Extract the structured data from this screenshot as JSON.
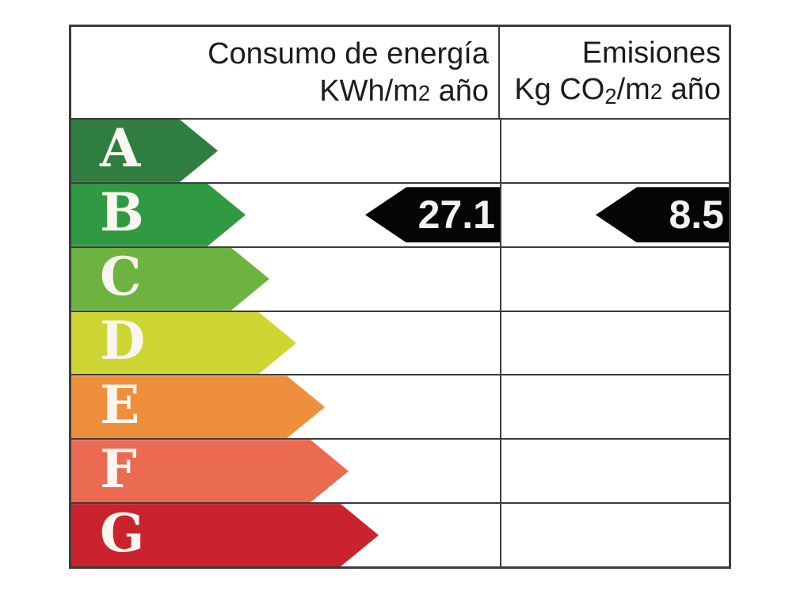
{
  "header": {
    "consumption": {
      "title": "Consumo de energía",
      "unit_prefix": "KWh/m",
      "unit_exponent": "2",
      "unit_suffix": " año"
    },
    "emissions": {
      "title": "Emisiones",
      "unit_prefix": "Kg CO",
      "unit_subscript": "2",
      "unit_mid": "/m",
      "unit_exponent": "2",
      "unit_suffix": " año"
    }
  },
  "scale": [
    {
      "label": "A",
      "color": "#2f7d3f",
      "arrow_width": 185
    },
    {
      "label": "B",
      "color": "#309a42",
      "arrow_width": 220
    },
    {
      "label": "C",
      "color": "#6db33f",
      "arrow_width": 250
    },
    {
      "label": "D",
      "color": "#cdd632",
      "arrow_width": 284
    },
    {
      "label": "E",
      "color": "#ef8f3c",
      "arrow_width": 320
    },
    {
      "label": "F",
      "color": "#eb6a52",
      "arrow_width": 350
    },
    {
      "label": "G",
      "color": "#ca232e",
      "arrow_width": 388
    }
  ],
  "result": {
    "rating": "B",
    "consumption_value": "27.1",
    "emissions_value": "8.5",
    "marker_color": "#050505",
    "consumption_marker_width": 170,
    "emissions_marker_width": 168
  },
  "border_color": "#3c3c3c",
  "chart_data": {
    "type": "table",
    "columns": [
      "Consumo de energía KWh/m2 año",
      "Emisiones Kg CO2/m2 año"
    ],
    "categories": [
      "A",
      "B",
      "C",
      "D",
      "E",
      "F",
      "G"
    ],
    "rating": "B",
    "series": [
      {
        "name": "Consumo de energía KWh/m2 año",
        "rating": "B",
        "value": 27.1
      },
      {
        "name": "Emisiones Kg CO2/m2 año",
        "rating": "B",
        "value": 8.5
      }
    ],
    "legend_position": "none",
    "grid": true
  }
}
